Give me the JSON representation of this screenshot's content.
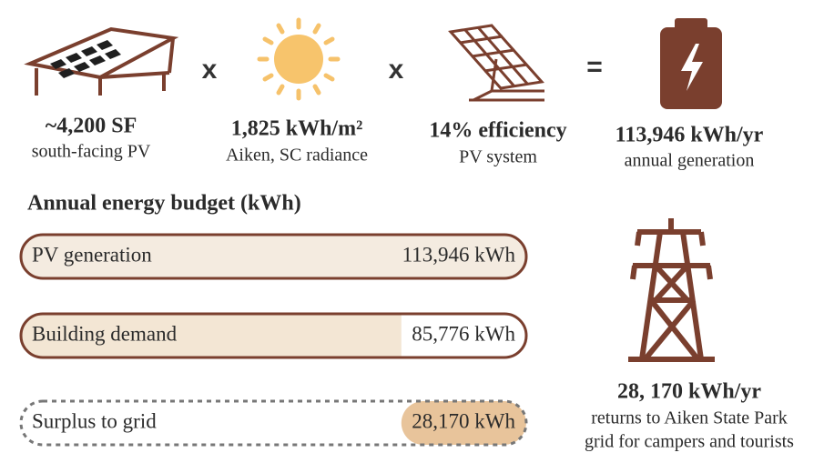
{
  "factors": [
    {
      "label": "~4,200 SF",
      "caption": "south-facing PV"
    },
    {
      "label": "1,825 kWh/m²",
      "caption": "Aiken, SC radiance"
    },
    {
      "label": "14% efficiency",
      "caption": "PV system"
    }
  ],
  "operators": [
    "x",
    "x",
    "="
  ],
  "result": {
    "label": "113,946 kWh/yr",
    "caption": "annual generation"
  },
  "budget": {
    "title": "Annual energy budget (kWh)",
    "bars": [
      {
        "label": "PV generation",
        "value": 113946,
        "value_label": "113,946 kWh"
      },
      {
        "label": "Building demand",
        "value": 85776,
        "value_label": "85,776 kWh"
      },
      {
        "label": "Surplus to grid",
        "value": 28170,
        "value_label": "28,170 kWh"
      }
    ]
  },
  "grid_note": {
    "label": "28, 170 kWh/yr",
    "lines": [
      "returns to Aiken State Park",
      "grid for campers and tourists"
    ]
  }
}
